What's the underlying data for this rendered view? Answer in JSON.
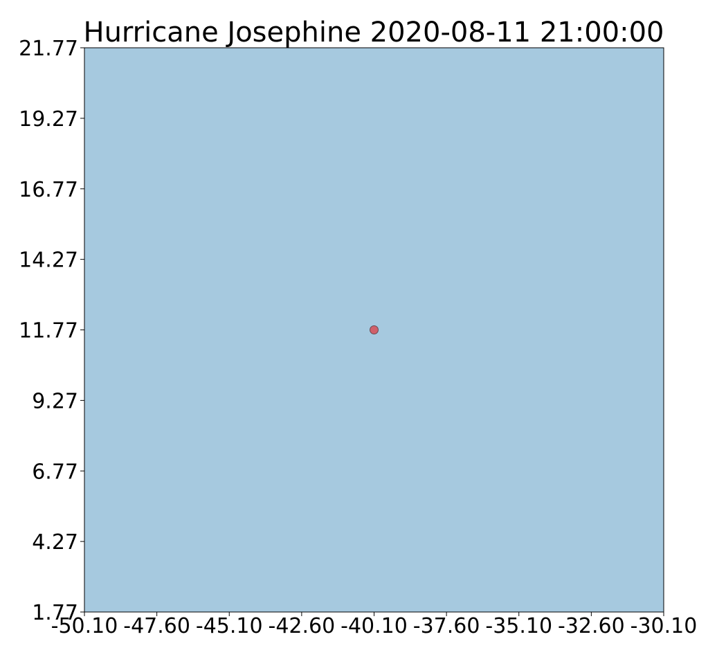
{
  "title": "Hurricane Josephine 2020-08-11 21:00:00",
  "colors": {
    "ocean": "#a6c9df",
    "marker_fill": "#d0606a",
    "marker_edge": "#6b4a52",
    "axis": "#000000"
  },
  "map": {
    "type": "scatter",
    "background": "ocean",
    "xlim": [
      -50.1,
      -30.1
    ],
    "ylim": [
      1.77,
      21.77
    ],
    "x_ticks": [
      "-50.10",
      "-47.60",
      "-45.10",
      "-42.60",
      "-40.10",
      "-37.60",
      "-35.10",
      "-32.60",
      "-30.10"
    ],
    "y_ticks": [
      "21.77",
      "19.27",
      "16.77",
      "14.27",
      "11.77",
      "9.27",
      "6.77",
      "4.27",
      "1.77"
    ],
    "points": [
      {
        "lon": -40.1,
        "lat": 11.77
      }
    ]
  }
}
